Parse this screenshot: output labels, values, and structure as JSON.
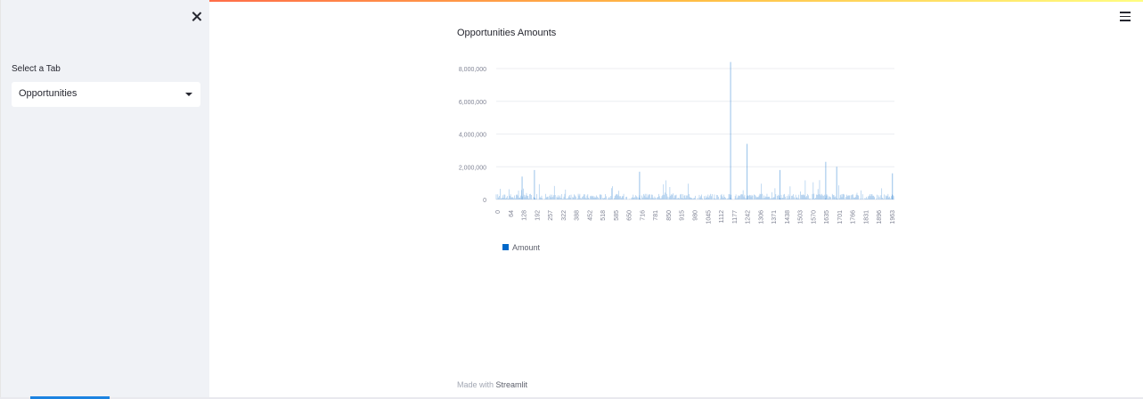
{
  "sidebar": {
    "select_label": "Select a Tab",
    "select_value": "Opportunities"
  },
  "chart_data": {
    "type": "bar",
    "title": "Opportunities Amounts",
    "xlabel": "",
    "ylabel": "",
    "ylim": [
      0,
      9000000
    ],
    "y_ticks": [
      "0",
      "2,000,000",
      "4,000,000",
      "6,000,000",
      "8,000,000"
    ],
    "x_tick_labels": [
      "0",
      "64",
      "128",
      "192",
      "257",
      "322",
      "388",
      "452",
      "518",
      "585",
      "650",
      "716",
      "781",
      "850",
      "915",
      "980",
      "1045",
      "1112",
      "1177",
      "1242",
      "1306",
      "1371",
      "1438",
      "1503",
      "1570",
      "1635",
      "1701",
      "1766",
      "1831",
      "1896",
      "1963"
    ],
    "x_range": [
      0,
      2000
    ],
    "series": [
      {
        "name": "Amount",
        "color": "#0068c9"
      }
    ],
    "notable_points": [
      {
        "x": 1177,
        "y": 8400000
      },
      {
        "x": 1260,
        "y": 3400000
      },
      {
        "x": 1655,
        "y": 2300000
      },
      {
        "x": 192,
        "y": 1800000
      },
      {
        "x": 1710,
        "y": 2000000
      },
      {
        "x": 720,
        "y": 1700000
      },
      {
        "x": 1425,
        "y": 1800000
      },
      {
        "x": 1990,
        "y": 1600000
      },
      {
        "x": 130,
        "y": 1400000
      }
    ],
    "grid": true,
    "legend": "bottom-left"
  },
  "footer": {
    "prefix": "Made with",
    "brand": "Streamlit"
  }
}
